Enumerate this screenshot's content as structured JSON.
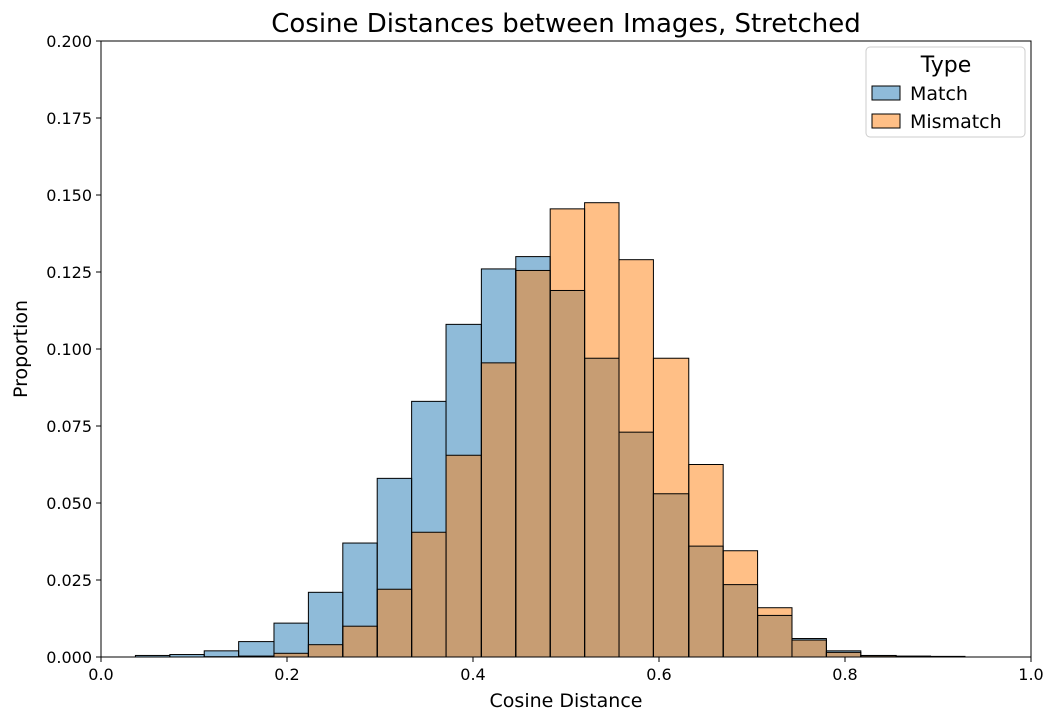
{
  "chart_data": {
    "type": "bar",
    "title": "Cosine Distances between Images, Stretched",
    "xlabel": "Cosine Distance",
    "ylabel": "Proportion",
    "xlim": [
      0.0,
      1.0
    ],
    "ylim": [
      0.0,
      0.2
    ],
    "x_ticks": [
      "0.0",
      "0.2",
      "0.4",
      "0.6",
      "0.8",
      "1.0"
    ],
    "y_ticks": [
      "0.000",
      "0.025",
      "0.050",
      "0.075",
      "0.100",
      "0.125",
      "0.150",
      "0.175",
      "0.200"
    ],
    "grid": false,
    "legend_position": "top-right",
    "legend_title": "Type",
    "bins": [
      [
        0.037,
        0.074
      ],
      [
        0.074,
        0.111
      ],
      [
        0.111,
        0.148
      ],
      [
        0.148,
        0.186
      ],
      [
        0.186,
        0.223
      ],
      [
        0.223,
        0.26
      ],
      [
        0.26,
        0.297
      ],
      [
        0.297,
        0.334
      ],
      [
        0.334,
        0.371
      ],
      [
        0.371,
        0.409
      ],
      [
        0.409,
        0.446
      ],
      [
        0.446,
        0.483
      ],
      [
        0.483,
        0.52
      ],
      [
        0.52,
        0.557
      ],
      [
        0.557,
        0.594
      ],
      [
        0.594,
        0.632
      ],
      [
        0.632,
        0.669
      ],
      [
        0.669,
        0.706
      ],
      [
        0.706,
        0.743
      ],
      [
        0.743,
        0.78
      ],
      [
        0.78,
        0.817
      ],
      [
        0.817,
        0.855
      ],
      [
        0.855,
        0.892
      ],
      [
        0.892,
        0.929
      ]
    ],
    "series": [
      {
        "name": "Match",
        "color": "#1f77b4",
        "values": [
          0.0005,
          0.0008,
          0.002,
          0.005,
          0.011,
          0.021,
          0.037,
          0.058,
          0.083,
          0.108,
          0.126,
          0.13,
          0.119,
          0.097,
          0.073,
          0.053,
          0.036,
          0.0235,
          0.0135,
          0.006,
          0.002,
          0.0005,
          0.0003,
          0.0002
        ]
      },
      {
        "name": "Mismatch",
        "color": "#ff7f0e",
        "values": [
          0.0,
          0.0,
          0.0001,
          0.0003,
          0.0012,
          0.004,
          0.01,
          0.022,
          0.0405,
          0.0655,
          0.0955,
          0.1255,
          0.1455,
          0.1475,
          0.129,
          0.097,
          0.0625,
          0.0345,
          0.016,
          0.0055,
          0.0015,
          0.0004,
          0.0001,
          0.0
        ]
      }
    ]
  }
}
